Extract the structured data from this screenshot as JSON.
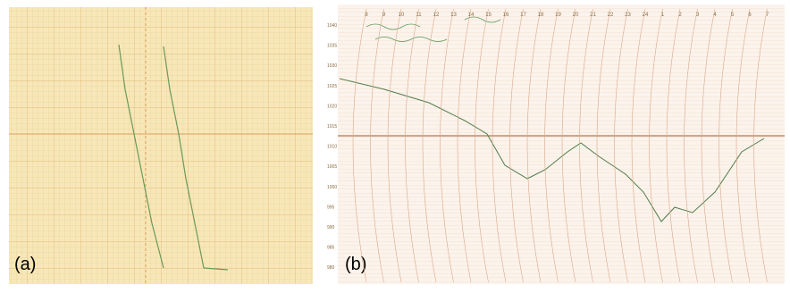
{
  "panels": [
    {
      "label": "(a)"
    },
    {
      "label": "(b)",
      "hour_labels": [
        "8",
        "9",
        "10",
        "11",
        "12",
        "13",
        "14",
        "15",
        "16",
        "17",
        "18",
        "19",
        "20",
        "21",
        "22",
        "23",
        "24",
        "1",
        "2",
        "3",
        "4",
        "5",
        "6",
        "7"
      ],
      "pressure_labels": [
        "1040",
        "1035",
        "1030",
        "1025",
        "1020",
        "1015",
        "1010",
        "1005",
        "1000",
        "995",
        "990",
        "985",
        "980"
      ]
    }
  ]
}
